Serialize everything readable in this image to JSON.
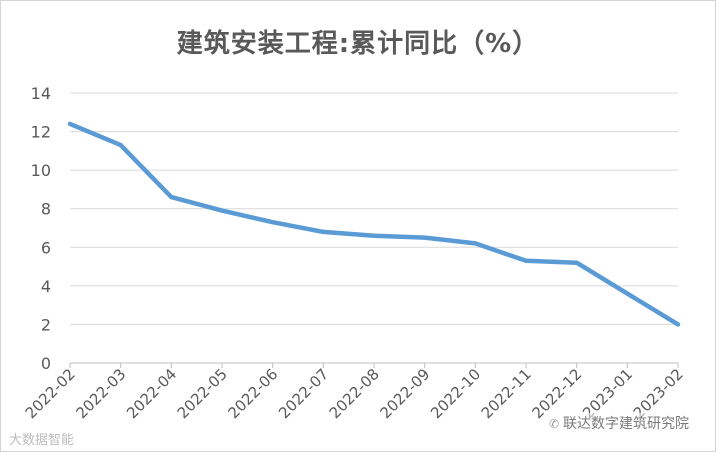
{
  "chart_data": {
    "type": "line",
    "title": "建筑安装工程:累计同比（%）",
    "xlabel": "",
    "ylabel": "",
    "ylim": [
      0,
      14
    ],
    "yticks": [
      0,
      2,
      4,
      6,
      8,
      10,
      12,
      14
    ],
    "grid": true,
    "legend": "none",
    "categories": [
      "2022-02",
      "2022-03",
      "2022-04",
      "2022-05",
      "2022-06",
      "2022-07",
      "2022-08",
      "2022-09",
      "2022-10",
      "2022-11",
      "2022-12",
      "2023-01",
      "2023-02"
    ],
    "series": [
      {
        "values": [
          12.4,
          11.3,
          8.6,
          7.9,
          7.3,
          6.8,
          6.6,
          6.5,
          6.2,
          5.3,
          5.2,
          3.6,
          2.0
        ],
        "color": "#5b9bd5"
      }
    ]
  },
  "watermarks": {
    "left": "大数据智能",
    "right": "联达数字建筑研究院",
    "right_icon": "wechat-icon"
  },
  "colors": {
    "line": "#5b9bd5",
    "grid": "#d9d9d9",
    "text": "#595959"
  }
}
